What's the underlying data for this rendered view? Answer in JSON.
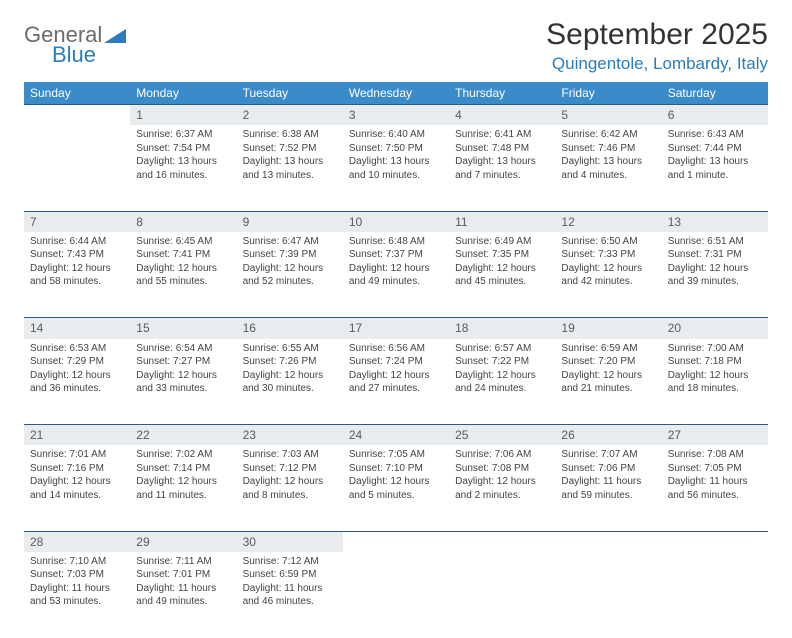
{
  "brand": {
    "word1": "General",
    "word2": "Blue",
    "word1_color": "#6b6b6b",
    "word2_color": "#2a7bbf",
    "shape_color": "#2a7bbf"
  },
  "title": "September 2025",
  "location": "Quingentole, Lombardy, Italy",
  "colors": {
    "header_bg": "#3b8bc9",
    "header_text": "#ffffff",
    "daynum_bg": "#e9ecef",
    "daynum_border": "#2a5a8a",
    "body_text": "#444444",
    "page_bg": "#ffffff"
  },
  "fonts": {
    "title_size": 30,
    "location_size": 17,
    "weekday_size": 12,
    "daynum_size": 12,
    "cell_size": 10
  },
  "weekdays": [
    "Sunday",
    "Monday",
    "Tuesday",
    "Wednesday",
    "Thursday",
    "Friday",
    "Saturday"
  ],
  "weeks": [
    {
      "nums": [
        "",
        "1",
        "2",
        "3",
        "4",
        "5",
        "6"
      ],
      "cells": [
        null,
        {
          "sunrise": "Sunrise: 6:37 AM",
          "sunset": "Sunset: 7:54 PM",
          "day1": "Daylight: 13 hours",
          "day2": "and 16 minutes."
        },
        {
          "sunrise": "Sunrise: 6:38 AM",
          "sunset": "Sunset: 7:52 PM",
          "day1": "Daylight: 13 hours",
          "day2": "and 13 minutes."
        },
        {
          "sunrise": "Sunrise: 6:40 AM",
          "sunset": "Sunset: 7:50 PM",
          "day1": "Daylight: 13 hours",
          "day2": "and 10 minutes."
        },
        {
          "sunrise": "Sunrise: 6:41 AM",
          "sunset": "Sunset: 7:48 PM",
          "day1": "Daylight: 13 hours",
          "day2": "and 7 minutes."
        },
        {
          "sunrise": "Sunrise: 6:42 AM",
          "sunset": "Sunset: 7:46 PM",
          "day1": "Daylight: 13 hours",
          "day2": "and 4 minutes."
        },
        {
          "sunrise": "Sunrise: 6:43 AM",
          "sunset": "Sunset: 7:44 PM",
          "day1": "Daylight: 13 hours",
          "day2": "and 1 minute."
        }
      ]
    },
    {
      "nums": [
        "7",
        "8",
        "9",
        "10",
        "11",
        "12",
        "13"
      ],
      "cells": [
        {
          "sunrise": "Sunrise: 6:44 AM",
          "sunset": "Sunset: 7:43 PM",
          "day1": "Daylight: 12 hours",
          "day2": "and 58 minutes."
        },
        {
          "sunrise": "Sunrise: 6:45 AM",
          "sunset": "Sunset: 7:41 PM",
          "day1": "Daylight: 12 hours",
          "day2": "and 55 minutes."
        },
        {
          "sunrise": "Sunrise: 6:47 AM",
          "sunset": "Sunset: 7:39 PM",
          "day1": "Daylight: 12 hours",
          "day2": "and 52 minutes."
        },
        {
          "sunrise": "Sunrise: 6:48 AM",
          "sunset": "Sunset: 7:37 PM",
          "day1": "Daylight: 12 hours",
          "day2": "and 49 minutes."
        },
        {
          "sunrise": "Sunrise: 6:49 AM",
          "sunset": "Sunset: 7:35 PM",
          "day1": "Daylight: 12 hours",
          "day2": "and 45 minutes."
        },
        {
          "sunrise": "Sunrise: 6:50 AM",
          "sunset": "Sunset: 7:33 PM",
          "day1": "Daylight: 12 hours",
          "day2": "and 42 minutes."
        },
        {
          "sunrise": "Sunrise: 6:51 AM",
          "sunset": "Sunset: 7:31 PM",
          "day1": "Daylight: 12 hours",
          "day2": "and 39 minutes."
        }
      ]
    },
    {
      "nums": [
        "14",
        "15",
        "16",
        "17",
        "18",
        "19",
        "20"
      ],
      "cells": [
        {
          "sunrise": "Sunrise: 6:53 AM",
          "sunset": "Sunset: 7:29 PM",
          "day1": "Daylight: 12 hours",
          "day2": "and 36 minutes."
        },
        {
          "sunrise": "Sunrise: 6:54 AM",
          "sunset": "Sunset: 7:27 PM",
          "day1": "Daylight: 12 hours",
          "day2": "and 33 minutes."
        },
        {
          "sunrise": "Sunrise: 6:55 AM",
          "sunset": "Sunset: 7:26 PM",
          "day1": "Daylight: 12 hours",
          "day2": "and 30 minutes."
        },
        {
          "sunrise": "Sunrise: 6:56 AM",
          "sunset": "Sunset: 7:24 PM",
          "day1": "Daylight: 12 hours",
          "day2": "and 27 minutes."
        },
        {
          "sunrise": "Sunrise: 6:57 AM",
          "sunset": "Sunset: 7:22 PM",
          "day1": "Daylight: 12 hours",
          "day2": "and 24 minutes."
        },
        {
          "sunrise": "Sunrise: 6:59 AM",
          "sunset": "Sunset: 7:20 PM",
          "day1": "Daylight: 12 hours",
          "day2": "and 21 minutes."
        },
        {
          "sunrise": "Sunrise: 7:00 AM",
          "sunset": "Sunset: 7:18 PM",
          "day1": "Daylight: 12 hours",
          "day2": "and 18 minutes."
        }
      ]
    },
    {
      "nums": [
        "21",
        "22",
        "23",
        "24",
        "25",
        "26",
        "27"
      ],
      "cells": [
        {
          "sunrise": "Sunrise: 7:01 AM",
          "sunset": "Sunset: 7:16 PM",
          "day1": "Daylight: 12 hours",
          "day2": "and 14 minutes."
        },
        {
          "sunrise": "Sunrise: 7:02 AM",
          "sunset": "Sunset: 7:14 PM",
          "day1": "Daylight: 12 hours",
          "day2": "and 11 minutes."
        },
        {
          "sunrise": "Sunrise: 7:03 AM",
          "sunset": "Sunset: 7:12 PM",
          "day1": "Daylight: 12 hours",
          "day2": "and 8 minutes."
        },
        {
          "sunrise": "Sunrise: 7:05 AM",
          "sunset": "Sunset: 7:10 PM",
          "day1": "Daylight: 12 hours",
          "day2": "and 5 minutes."
        },
        {
          "sunrise": "Sunrise: 7:06 AM",
          "sunset": "Sunset: 7:08 PM",
          "day1": "Daylight: 12 hours",
          "day2": "and 2 minutes."
        },
        {
          "sunrise": "Sunrise: 7:07 AM",
          "sunset": "Sunset: 7:06 PM",
          "day1": "Daylight: 11 hours",
          "day2": "and 59 minutes."
        },
        {
          "sunrise": "Sunrise: 7:08 AM",
          "sunset": "Sunset: 7:05 PM",
          "day1": "Daylight: 11 hours",
          "day2": "and 56 minutes."
        }
      ]
    },
    {
      "nums": [
        "28",
        "29",
        "30",
        "",
        "",
        "",
        ""
      ],
      "cells": [
        {
          "sunrise": "Sunrise: 7:10 AM",
          "sunset": "Sunset: 7:03 PM",
          "day1": "Daylight: 11 hours",
          "day2": "and 53 minutes."
        },
        {
          "sunrise": "Sunrise: 7:11 AM",
          "sunset": "Sunset: 7:01 PM",
          "day1": "Daylight: 11 hours",
          "day2": "and 49 minutes."
        },
        {
          "sunrise": "Sunrise: 7:12 AM",
          "sunset": "Sunset: 6:59 PM",
          "day1": "Daylight: 11 hours",
          "day2": "and 46 minutes."
        },
        null,
        null,
        null,
        null
      ]
    }
  ]
}
